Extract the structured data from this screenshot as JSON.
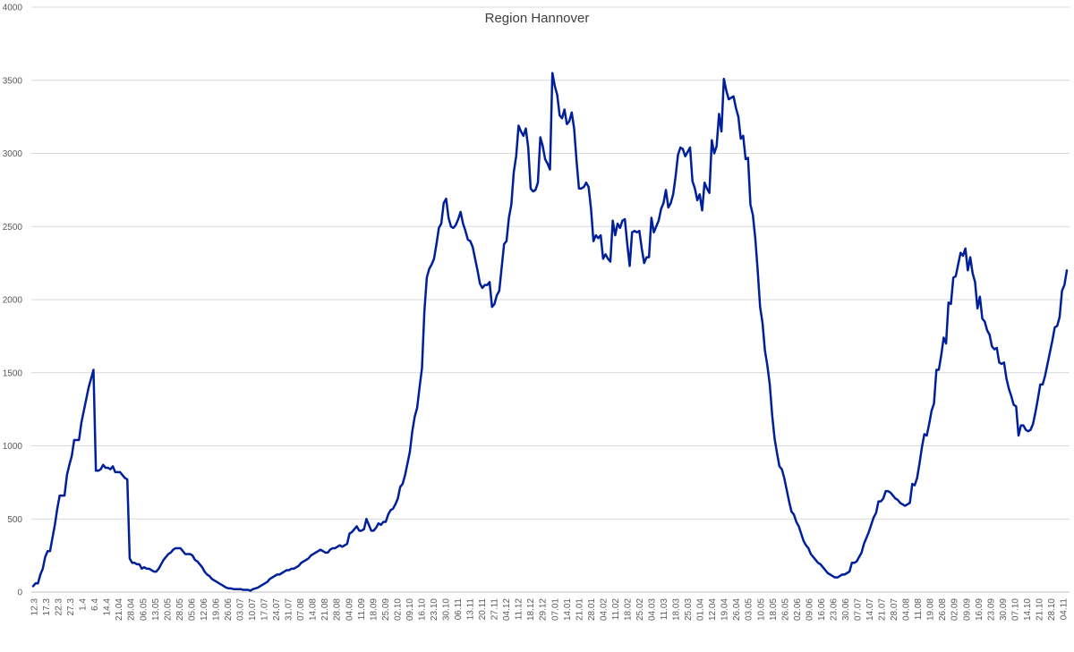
{
  "chart_data": {
    "type": "line",
    "title": "Region Hannover",
    "xlabel": "",
    "ylabel": "",
    "ylim": [
      0,
      4000
    ],
    "yticks": [
      "0",
      "500",
      "1000",
      "1500",
      "2000",
      "2500",
      "3000",
      "3500",
      "4000"
    ],
    "grid": true,
    "legend": "none",
    "line_color": "#001f9a",
    "x_tick_labels": [
      "12.3",
      "17.3",
      "22.3",
      "27.3",
      "1.4",
      "6.4",
      "14.4",
      "21.04",
      "28.04",
      "06.05",
      "13.05",
      "20.05",
      "28.05",
      "05.06",
      "12.06",
      "19.06",
      "26.06",
      "03.07",
      "10.07",
      "17.07",
      "24.07",
      "31.07",
      "07.08",
      "14.08",
      "21.08",
      "28.08",
      "04.09",
      "11.09",
      "18.09",
      "25.09",
      "02.10",
      "09.10",
      "16.10",
      "23.10",
      "30.10",
      "06.11",
      "13.11",
      "20.11",
      "27.11",
      "04.12",
      "11.12",
      "18.12",
      "29.12",
      "07.01",
      "14.01",
      "21.01",
      "28.01",
      "04.02",
      "11.02",
      "18.02",
      "25.02",
      "04.03",
      "11.03",
      "18.03",
      "25.03",
      "01.04",
      "12.04",
      "19.04",
      "26.04",
      "03.05",
      "10.05",
      "18.05",
      "26.05",
      "02.06",
      "09.06",
      "16.06",
      "23.06",
      "30.06",
      "07.07",
      "14.07",
      "21.07",
      "28.07",
      "04.08",
      "11.08",
      "19.08",
      "26.08",
      "02.09",
      "09.09",
      "16.09",
      "23.09",
      "30.09",
      "07.10",
      "14.10",
      "21.10",
      "28.10",
      "04.11"
    ],
    "series": [
      {
        "values": [
          40,
          60,
          60,
          120,
          160,
          240,
          280,
          280,
          370,
          460,
          570,
          660,
          660,
          660,
          800,
          870,
          930,
          1040,
          1040,
          1040,
          1160,
          1240,
          1320,
          1400,
          1460,
          1520,
          830,
          830,
          840,
          870,
          850,
          850,
          840,
          860,
          820,
          820,
          820,
          800,
          780,
          770,
          230,
          200,
          200,
          190,
          190,
          160,
          170,
          160,
          160,
          150,
          140,
          140,
          160,
          190,
          220,
          240,
          260,
          270,
          290,
          300,
          300,
          300,
          280,
          260,
          260,
          260,
          250,
          220,
          210,
          190,
          170,
          140,
          120,
          110,
          90,
          80,
          70,
          60,
          50,
          40,
          30,
          25,
          25,
          20,
          20,
          20,
          20,
          15,
          15,
          15,
          10,
          20,
          25,
          30,
          40,
          50,
          60,
          70,
          90,
          100,
          110,
          120,
          120,
          130,
          140,
          150,
          150,
          160,
          160,
          170,
          180,
          200,
          210,
          220,
          230,
          250,
          260,
          270,
          280,
          290,
          280,
          270,
          270,
          290,
          300,
          300,
          310,
          320,
          310,
          320,
          330,
          400,
          410,
          430,
          450,
          420,
          420,
          430,
          500,
          460,
          420,
          420,
          440,
          470,
          460,
          480,
          480,
          530,
          560,
          570,
          600,
          640,
          720,
          740,
          800,
          880,
          960,
          1100,
          1200,
          1260,
          1400,
          1530,
          1920,
          2150,
          2210,
          2240,
          2280,
          2380,
          2490,
          2520,
          2660,
          2690,
          2560,
          2500,
          2490,
          2510,
          2550,
          2600,
          2520,
          2470,
          2410,
          2400,
          2360,
          2280,
          2200,
          2110,
          2080,
          2100,
          2100,
          2120,
          1950,
          1970,
          2030,
          2060,
          2220,
          2380,
          2400,
          2560,
          2650,
          2870,
          2980,
          3190,
          3150,
          3120,
          3170,
          3040,
          2760,
          2740,
          2750,
          2800,
          3110,
          3050,
          2960,
          2930,
          2890,
          3550,
          3460,
          3400,
          3260,
          3240,
          3300,
          3200,
          3220,
          3280,
          3170,
          2950,
          2760,
          2760,
          2770,
          2800,
          2770,
          2620,
          2400,
          2440,
          2420,
          2440,
          2280,
          2310,
          2280,
          2260,
          2540,
          2440,
          2520,
          2490,
          2540,
          2550,
          2380,
          2230,
          2460,
          2470,
          2460,
          2470,
          2350,
          2250,
          2290,
          2290,
          2560,
          2460,
          2500,
          2540,
          2620,
          2660,
          2750,
          2630,
          2660,
          2720,
          2840,
          2990,
          3040,
          3030,
          2980,
          3010,
          3040,
          2810,
          2760,
          2680,
          2720,
          2610,
          2800,
          2760,
          2730,
          3090,
          3000,
          3050,
          3270,
          3150,
          3510,
          3430,
          3370,
          3380,
          3390,
          3310,
          3250,
          3100,
          3120,
          2960,
          2970,
          2650,
          2580,
          2420,
          2200,
          1950,
          1840,
          1650,
          1550,
          1420,
          1210,
          1050,
          950,
          860,
          840,
          780,
          700,
          620,
          550,
          530,
          480,
          450,
          400,
          350,
          320,
          300,
          260,
          240,
          220,
          200,
          190,
          170,
          150,
          130,
          120,
          110,
          100,
          100,
          110,
          120,
          120,
          130,
          140,
          200,
          200,
          210,
          240,
          270,
          330,
          370,
          410,
          460,
          510,
          540,
          620,
          620,
          640,
          690,
          690,
          680,
          660,
          640,
          630,
          610,
          600,
          590,
          600,
          610,
          740,
          730,
          780,
          880,
          990,
          1080,
          1070,
          1150,
          1240,
          1290,
          1520,
          1520,
          1620,
          1740,
          1700,
          1980,
          1970,
          2150,
          2160,
          2240,
          2320,
          2300,
          2350,
          2200,
          2290,
          2180,
          2120,
          1940,
          2020,
          1870,
          1850,
          1790,
          1760,
          1680,
          1660,
          1670,
          1570,
          1560,
          1570,
          1460,
          1390,
          1340,
          1280,
          1270,
          1070,
          1140,
          1140,
          1110,
          1100,
          1110,
          1150,
          1230,
          1320,
          1420,
          1420,
          1480,
          1560,
          1640,
          1720,
          1810,
          1820,
          1880,
          2060,
          2100,
          2200
        ]
      }
    ]
  }
}
